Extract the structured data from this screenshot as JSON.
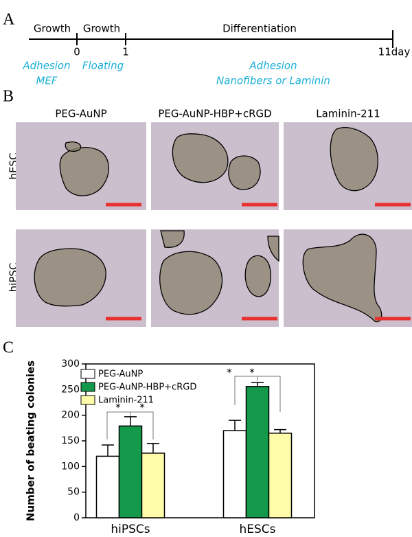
{
  "panel_a": {
    "label": "A",
    "phases": [
      "Growth",
      "Growth",
      "Differentiation"
    ],
    "days": [
      "0",
      "1",
      "11day"
    ],
    "conditions": [
      "Adhesion",
      "MEF",
      "Floating",
      "Adhesion",
      "Nanofibers or Laminin"
    ]
  },
  "panel_b": {
    "label": "B",
    "columns": [
      "PEG-AuNP",
      "PEG-AuNP-HBP+cRGD",
      "Laminin-211"
    ],
    "rows": [
      "hESC",
      "hiPSC"
    ]
  },
  "panel_c": {
    "label": "C",
    "annotations": [
      "*",
      "*",
      "*",
      "*"
    ]
  },
  "chart_data": {
    "type": "bar",
    "ylabel": "Number of beating colonies",
    "categories": [
      "hiPSCs",
      "hESCs"
    ],
    "series": [
      {
        "name": "PEG-AuNP",
        "color": "#ffffff",
        "values": [
          120,
          170
        ],
        "errors": [
          22,
          20
        ]
      },
      {
        "name": "PEG-AuNP-HBP+cRGD",
        "color": "#14994a",
        "values": [
          179,
          256
        ],
        "errors": [
          18,
          8
        ]
      },
      {
        "name": "Laminin-211",
        "color": "#fefca8",
        "values": [
          126,
          165
        ],
        "errors": [
          19,
          7
        ]
      }
    ],
    "ylim": [
      0,
      300
    ],
    "yticks": [
      0,
      50,
      100,
      150,
      200,
      250,
      300
    ],
    "legend": "upper left"
  }
}
